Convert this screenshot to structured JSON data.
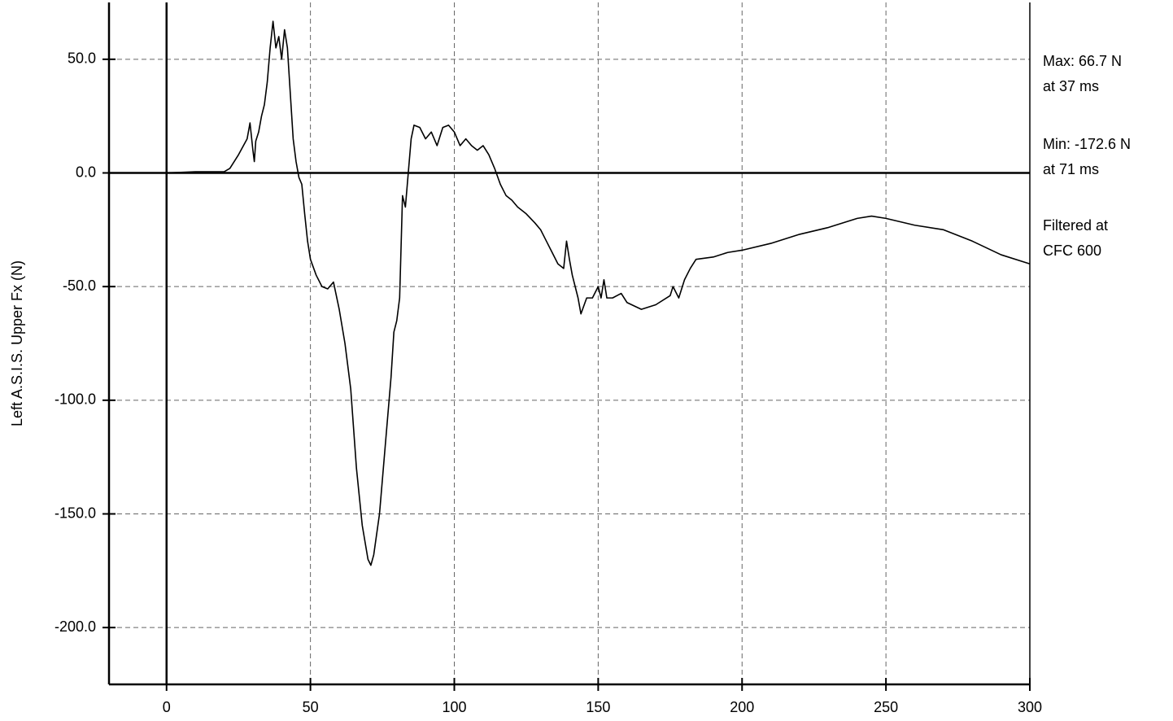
{
  "chart_data": {
    "type": "line",
    "y_label": "Left A.S.I.S. Upper Fx (N)",
    "annotations": [
      "Max: 66.7 N",
      "at 37 ms",
      "Min: -172.6 N",
      "at 71 ms",
      "Filtered at",
      "CFC 600"
    ],
    "xlim": [
      -20,
      300
    ],
    "ylim": [
      -225,
      75
    ],
    "xticks": [
      0,
      50,
      100,
      150,
      200,
      250,
      300
    ],
    "yticks": [
      {
        "value": -200,
        "label": "-200.0"
      },
      {
        "value": -150,
        "label": "-150.0"
      },
      {
        "value": -100,
        "label": "-100.0"
      },
      {
        "value": -50,
        "label": "-50.0"
      },
      {
        "value": 0,
        "label": "0.0"
      },
      {
        "value": 50,
        "label": "50.0"
      }
    ],
    "grid": true,
    "series": [
      {
        "color": "#000000",
        "x": [
          -20,
          -10,
          0,
          10,
          20,
          22,
          25,
          28,
          29,
          30,
          30.5,
          31,
          32,
          33,
          34,
          35,
          36,
          37,
          38,
          39,
          40,
          41,
          42,
          43,
          44,
          45,
          46,
          47,
          48,
          49,
          50,
          52,
          54,
          56,
          58,
          60,
          62,
          64,
          66,
          68,
          70,
          71,
          72,
          74,
          76,
          78,
          79,
          80,
          81,
          82,
          83,
          84,
          85,
          86,
          88,
          90,
          92,
          94,
          96,
          98,
          100,
          102,
          104,
          106,
          108,
          110,
          112,
          114,
          116,
          118,
          120,
          122,
          125,
          128,
          130,
          132,
          134,
          136,
          138,
          139,
          140,
          141,
          143,
          144,
          146,
          148,
          150,
          151,
          152,
          153,
          155,
          158,
          160,
          165,
          170,
          175,
          176,
          178,
          180,
          182,
          184,
          190,
          195,
          200,
          210,
          220,
          230,
          240,
          245,
          250,
          260,
          270,
          280,
          290,
          300
        ],
        "values": [
          0,
          0,
          0,
          0.5,
          0.5,
          2,
          8,
          15,
          22,
          10,
          5,
          14,
          18,
          25,
          30,
          40,
          55,
          66.7,
          55,
          60,
          50,
          63,
          55,
          35,
          15,
          5,
          -2,
          -5,
          -18,
          -30,
          -38,
          -45,
          -50,
          -51,
          -48,
          -60,
          -75,
          -95,
          -130,
          -155,
          -170,
          -172.6,
          -168,
          -150,
          -120,
          -90,
          -70,
          -65,
          -55,
          -10,
          -15,
          0,
          15,
          21,
          20,
          15,
          18,
          12,
          20,
          21,
          18,
          12,
          15,
          12,
          10,
          12,
          8,
          2,
          -5,
          -10,
          -12,
          -15,
          -18,
          -22,
          -25,
          -30,
          -35,
          -40,
          -42,
          -30,
          -38,
          -45,
          -55,
          -62,
          -55,
          -55,
          -50,
          -55,
          -47,
          -55,
          -55,
          -53,
          -57,
          -60,
          -58,
          -54,
          -50,
          -55,
          -47,
          -42,
          -38,
          -37,
          -35,
          -34,
          -31,
          -27,
          -24,
          -20,
          -19,
          -20,
          -23,
          -25,
          -30,
          -36,
          -40
        ]
      }
    ]
  }
}
